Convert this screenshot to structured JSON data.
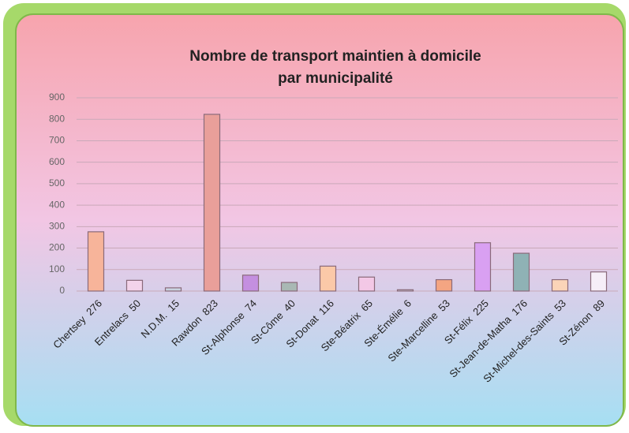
{
  "chart_data": {
    "type": "bar",
    "title": "Nombre de transport maintien à domicile",
    "subtitle": "par municipalité",
    "categories": [
      "Chertsey  276",
      "Entrelacs  50",
      "N.D.M.  15",
      "Rawdon  823",
      "St-Alphonse  74",
      "St-Côme  40",
      "St-Donat  116",
      "Ste-Béatrix  65",
      "Ste-Émélie  6",
      "Ste-Marcelline  53",
      "St-Félix  225",
      "St-Jean-de-Matha  176",
      "St-Michel-des-Saints  53",
      "St-Zénon  89"
    ],
    "values": [
      276,
      50,
      15,
      823,
      74,
      40,
      116,
      65,
      6,
      53,
      225,
      176,
      53,
      89
    ],
    "colors": [
      "#f7b49a",
      "#f3d3ea",
      "#c9d3e0",
      "#e99f9a",
      "#c48fe0",
      "#a9b8b4",
      "#fbc9a8",
      "#f3c8e6",
      "#c8cbd6",
      "#f4a582",
      "#d9a0f2",
      "#8fb2b5",
      "#fbd4b8",
      "#f6eef8"
    ],
    "ylim": [
      0,
      900
    ],
    "yticks": [
      0,
      100,
      200,
      300,
      400,
      500,
      600,
      700,
      800,
      900
    ],
    "grid": true
  }
}
